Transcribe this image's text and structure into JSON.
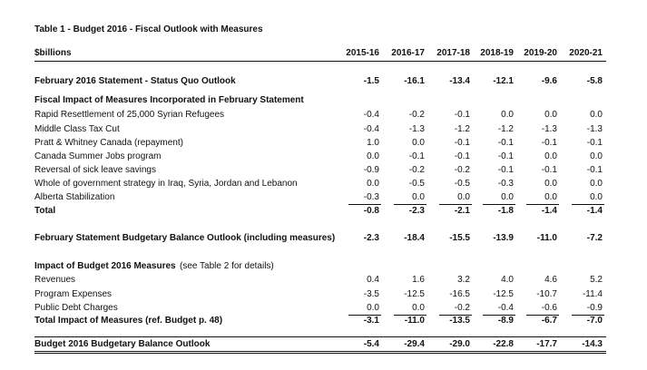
{
  "table": {
    "title": "Table 1 - Budget 2016 - Fiscal Outlook with Measures",
    "unit_label": "$billions",
    "columns": [
      "2015-16",
      "2016-17",
      "2017-18",
      "2018-19",
      "2019-20",
      "2020-21"
    ],
    "rows": [
      {
        "label": "February 2016 Statement - Status Quo Outlook",
        "values": [
          "-1.5",
          "-16.1",
          "-13.4",
          "-12.1",
          "-9.6",
          "-5.8"
        ]
      },
      {
        "label": "Fiscal Impact of Measures Incorporated in February Statement"
      },
      {
        "label": "Rapid Resettlement of 25,000 Syrian Refugees",
        "values": [
          "-0.4",
          "-0.2",
          "-0.1",
          "0.0",
          "0.0",
          "0.0"
        ]
      },
      {
        "label": "Middle Class Tax Cut",
        "values": [
          "-0.4",
          "-1.3",
          "-1.2",
          "-1.2",
          "-1.3",
          "-1.3"
        ]
      },
      {
        "label": "Pratt & Whitney Canada (repayment)",
        "values": [
          "1.0",
          "0.0",
          "-0.1",
          "-0.1",
          "-0.1",
          "-0.1"
        ]
      },
      {
        "label": "Canada Summer Jobs program",
        "values": [
          "0.0",
          "-0.1",
          "-0.1",
          "-0.1",
          "0.0",
          "0.0"
        ]
      },
      {
        "label": "Reversal of sick leave savings",
        "values": [
          "-0.9",
          "-0.2",
          "-0.2",
          "-0.1",
          "-0.1",
          "-0.1"
        ]
      },
      {
        "label": "Whole of government strategy in Iraq, Syria, Jordan and Lebanon",
        "values": [
          "0.0",
          "-0.5",
          "-0.5",
          "-0.3",
          "0.0",
          "0.0"
        ]
      },
      {
        "label": "Alberta Stabilization",
        "values": [
          "-0.3",
          "0.0",
          "0.0",
          "0.0",
          "0.0",
          "0.0"
        ]
      },
      {
        "label": "Total",
        "values": [
          "-0.8",
          "-2.3",
          "-2.1",
          "-1.8",
          "-1.4",
          "-1.4"
        ]
      },
      {
        "label": "February Statement Budgetary Balance Outlook (including measures)",
        "values": [
          "-2.3",
          "-18.4",
          "-15.5",
          "-13.9",
          "-11.0",
          "-7.2"
        ]
      },
      {
        "label": "Impact of Budget 2016 Measures",
        "note": "(see Table 2 for details)"
      },
      {
        "label": "Revenues",
        "values": [
          "0.4",
          "1.6",
          "3.2",
          "4.0",
          "4.6",
          "5.2"
        ]
      },
      {
        "label": "Program Expenses",
        "values": [
          "-3.5",
          "-12.5",
          "-16.5",
          "-12.5",
          "-10.7",
          "-11.4"
        ]
      },
      {
        "label": "Public Debt Charges",
        "values": [
          "0.0",
          "0.0",
          "-0.2",
          "-0.4",
          "-0.6",
          "-0.9"
        ]
      },
      {
        "label": "Total Impact of Measures (ref. Budget p. 48)",
        "values": [
          "-3.1",
          "-11.0",
          "-13.5",
          "-8.9",
          "-6.7",
          "-7.0"
        ]
      },
      {
        "label": "Budget 2016 Budgetary Balance Outlook",
        "values": [
          "-5.4",
          "-29.4",
          "-29.0",
          "-22.8",
          "-17.7",
          "-14.3"
        ]
      }
    ]
  }
}
